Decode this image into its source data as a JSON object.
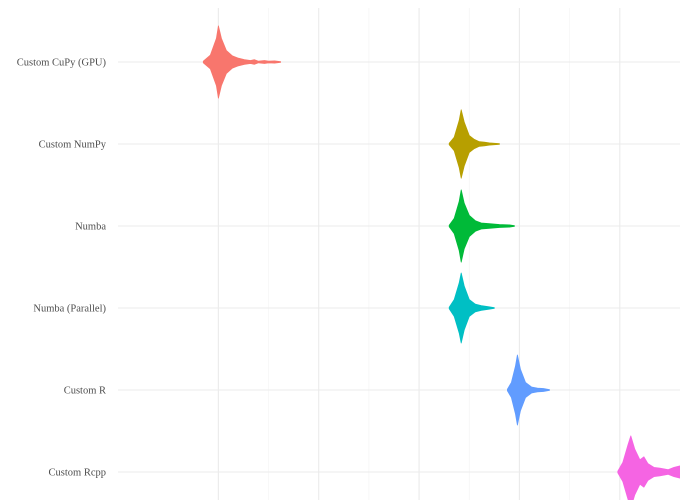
{
  "chart_data": {
    "type": "violin",
    "orientation": "horizontal",
    "title": "",
    "xlabel": "",
    "ylabel": "",
    "x_axis_tick_labels_visible": false,
    "grid": true,
    "legend": "none",
    "categories": [
      "Custom CuPy (GPU)",
      "Custom NumPy",
      "Numba",
      "Numba (Parallel)",
      "Custom R",
      "Custom Rcpp"
    ],
    "series": [
      {
        "category": "Custom CuPy (GPU)",
        "color": "#F8766D",
        "min": -0.15,
        "max": 0.62,
        "profile": [
          [
            -0.15,
            0.02
          ],
          [
            -0.08,
            0.18
          ],
          [
            -0.02,
            0.62
          ],
          [
            0,
            0.95
          ],
          [
            0.03,
            0.62
          ],
          [
            0.08,
            0.3
          ],
          [
            0.14,
            0.16
          ],
          [
            0.2,
            0.1
          ],
          [
            0.26,
            0.06
          ],
          [
            0.32,
            0.04
          ],
          [
            0.36,
            0.06
          ],
          [
            0.4,
            0.02
          ],
          [
            0.46,
            0.04
          ],
          [
            0.5,
            0.02
          ],
          [
            0.56,
            0.03
          ],
          [
            0.62,
            0.01
          ]
        ]
      },
      {
        "category": "Custom NumPy",
        "color": "#B79F00",
        "min": 2.3,
        "max": 2.8,
        "profile": [
          [
            2.3,
            0.02
          ],
          [
            2.35,
            0.18
          ],
          [
            2.4,
            0.62
          ],
          [
            2.42,
            0.9
          ],
          [
            2.45,
            0.58
          ],
          [
            2.5,
            0.22
          ],
          [
            2.55,
            0.12
          ],
          [
            2.6,
            0.06
          ],
          [
            2.65,
            0.05
          ],
          [
            2.7,
            0.03
          ],
          [
            2.8,
            0.01
          ]
        ]
      },
      {
        "category": "Numba",
        "color": "#00BA38",
        "min": 2.3,
        "max": 2.95,
        "profile": [
          [
            2.3,
            0.02
          ],
          [
            2.35,
            0.2
          ],
          [
            2.4,
            0.65
          ],
          [
            2.42,
            0.95
          ],
          [
            2.45,
            0.6
          ],
          [
            2.5,
            0.28
          ],
          [
            2.56,
            0.14
          ],
          [
            2.62,
            0.08
          ],
          [
            2.7,
            0.06
          ],
          [
            2.8,
            0.04
          ],
          [
            2.9,
            0.03
          ],
          [
            2.95,
            0.01
          ]
        ]
      },
      {
        "category": "Numba (Parallel)",
        "color": "#00BFC4",
        "min": 2.3,
        "max": 2.75,
        "profile": [
          [
            2.3,
            0.02
          ],
          [
            2.35,
            0.22
          ],
          [
            2.4,
            0.66
          ],
          [
            2.42,
            0.92
          ],
          [
            2.45,
            0.58
          ],
          [
            2.5,
            0.22
          ],
          [
            2.56,
            0.1
          ],
          [
            2.62,
            0.06
          ],
          [
            2.68,
            0.04
          ],
          [
            2.75,
            0.01
          ]
        ]
      },
      {
        "category": "Custom R",
        "color": "#619CFF",
        "min": 2.88,
        "max": 3.3,
        "profile": [
          [
            2.88,
            0.02
          ],
          [
            2.92,
            0.2
          ],
          [
            2.96,
            0.62
          ],
          [
            2.98,
            0.92
          ],
          [
            3.01,
            0.55
          ],
          [
            3.06,
            0.2
          ],
          [
            3.12,
            0.08
          ],
          [
            3.18,
            0.05
          ],
          [
            3.24,
            0.04
          ],
          [
            3.3,
            0.01
          ]
        ]
      },
      {
        "category": "Custom Rcpp",
        "color": "#F564E3",
        "min": 3.98,
        "max": 4.66,
        "profile": [
          [
            3.98,
            0.02
          ],
          [
            4.03,
            0.25
          ],
          [
            4.08,
            0.7
          ],
          [
            4.11,
            0.95
          ],
          [
            4.15,
            0.6
          ],
          [
            4.2,
            0.32
          ],
          [
            4.24,
            0.4
          ],
          [
            4.28,
            0.22
          ],
          [
            4.34,
            0.12
          ],
          [
            4.4,
            0.1
          ],
          [
            4.48,
            0.06
          ],
          [
            4.54,
            0.12
          ],
          [
            4.6,
            0.16
          ],
          [
            4.64,
            0.1
          ],
          [
            4.66,
            0.02
          ]
        ]
      }
    ],
    "xlim": [
      -1.0,
      4.6
    ],
    "x_major_breaks": [
      0,
      1,
      2,
      3,
      4
    ]
  }
}
